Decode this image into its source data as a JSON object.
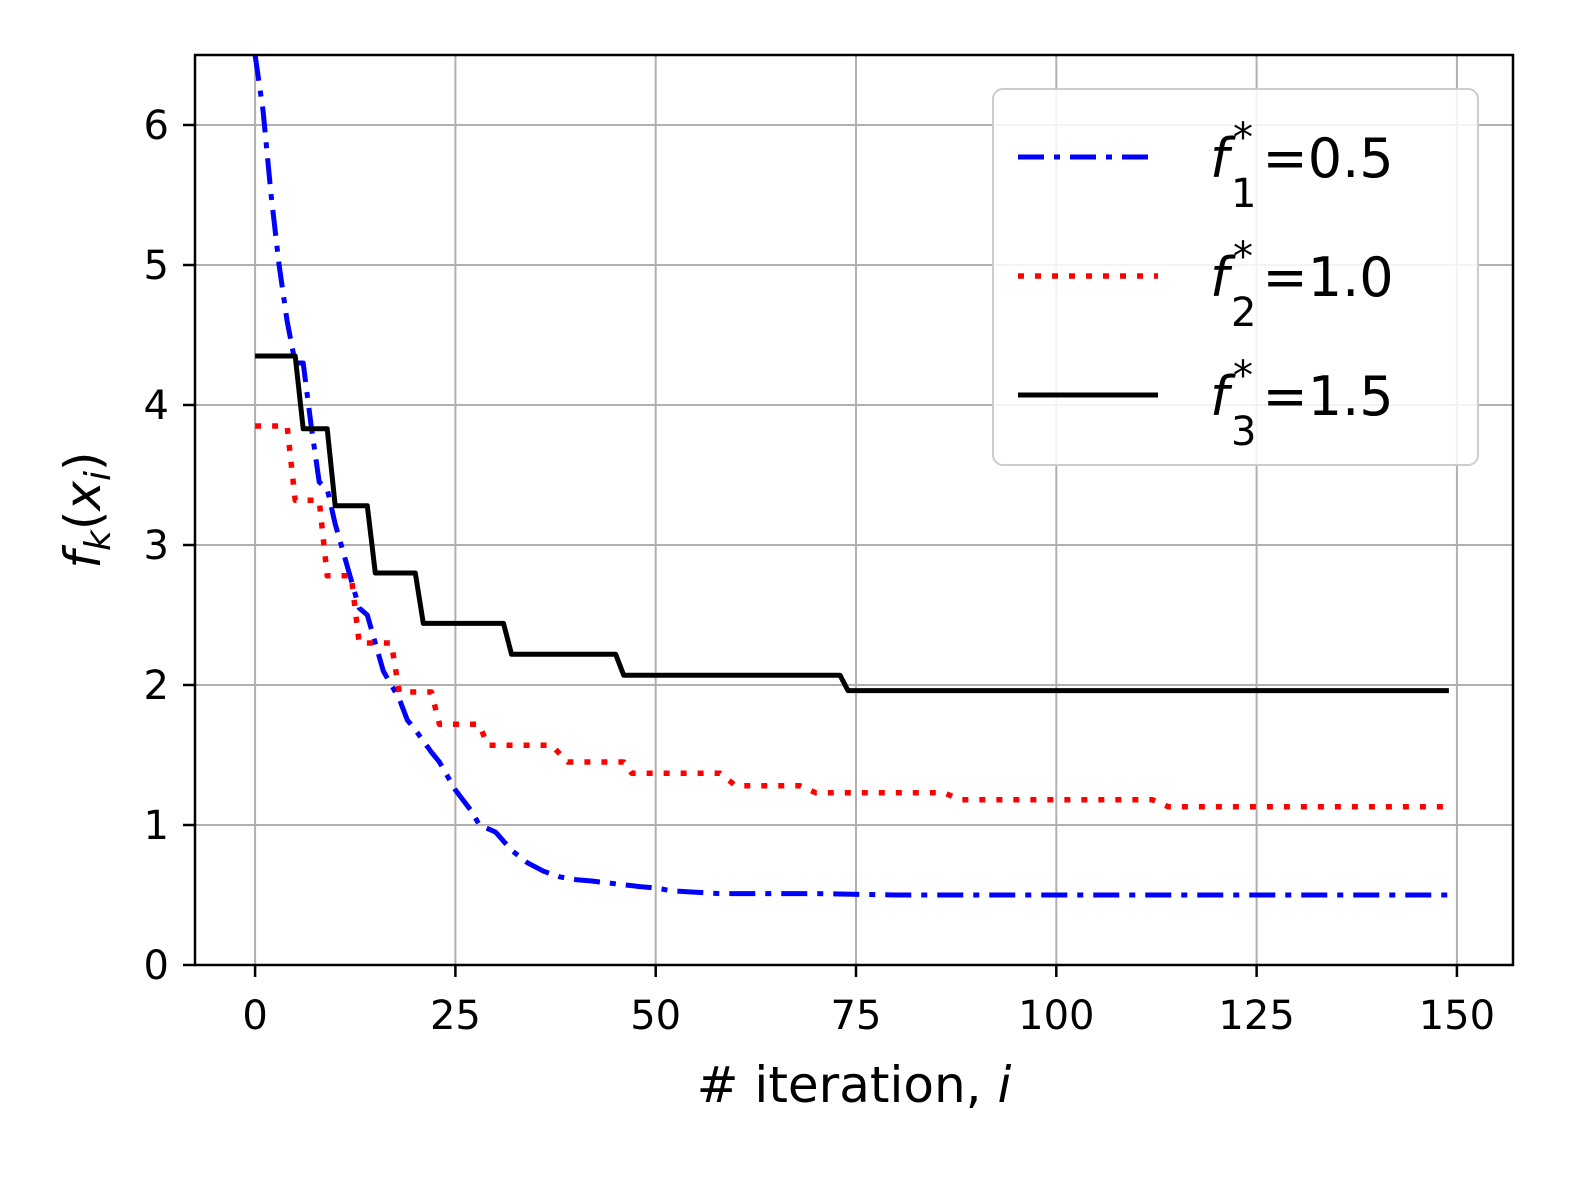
{
  "chart_data": {
    "type": "line",
    "xlabel": "# iteration, i",
    "ylabel": "f_k(x_i)",
    "xlim": [
      -7.5,
      157
    ],
    "ylim": [
      0,
      6.5
    ],
    "xticks": [
      0,
      25,
      50,
      75,
      100,
      125,
      150
    ],
    "yticks": [
      0,
      1,
      2,
      3,
      4,
      5,
      6
    ],
    "grid": true,
    "legend_position": "top-right",
    "series": [
      {
        "name": "f_1^*=0.5",
        "sub": "1",
        "value_text": "=0.5",
        "color": "#0000ff",
        "style": "dashdot",
        "step": false,
        "x": [
          0,
          1,
          2,
          3,
          4,
          5,
          6,
          7,
          8,
          9,
          10,
          11,
          12,
          13,
          14,
          15,
          16,
          17,
          18,
          19,
          20,
          21,
          22,
          23,
          24,
          25,
          27,
          28,
          30,
          32,
          34,
          36,
          38,
          40,
          42,
          45,
          48,
          50,
          52,
          55,
          58,
          60,
          70,
          80,
          90,
          100,
          110,
          120,
          130,
          140,
          149
        ],
        "y": [
          6.5,
          6.1,
          5.5,
          5.0,
          4.6,
          4.3,
          4.3,
          3.85,
          3.45,
          3.4,
          3.15,
          2.95,
          2.75,
          2.55,
          2.5,
          2.3,
          2.1,
          2.0,
          1.9,
          1.75,
          1.68,
          1.6,
          1.52,
          1.45,
          1.35,
          1.25,
          1.1,
          1.0,
          0.95,
          0.82,
          0.73,
          0.67,
          0.63,
          0.61,
          0.6,
          0.58,
          0.56,
          0.55,
          0.53,
          0.52,
          0.51,
          0.51,
          0.51,
          0.5,
          0.5,
          0.5,
          0.5,
          0.5,
          0.5,
          0.5,
          0.5
        ]
      },
      {
        "name": "f_2^*=1.0",
        "sub": "2",
        "value_text": "=1.0",
        "color": "#ff0000",
        "style": "dotted",
        "step": true,
        "x": [
          0,
          4,
          5,
          8,
          9,
          12,
          13,
          17,
          18,
          22,
          23,
          28,
          29,
          37,
          39,
          46,
          47,
          58,
          60,
          68,
          70,
          86,
          88,
          112,
          114,
          149
        ],
        "y": [
          3.85,
          3.85,
          3.32,
          3.32,
          2.78,
          2.78,
          2.3,
          2.3,
          1.95,
          1.95,
          1.72,
          1.72,
          1.57,
          1.57,
          1.45,
          1.45,
          1.37,
          1.37,
          1.28,
          1.28,
          1.23,
          1.23,
          1.18,
          1.18,
          1.13,
          1.13
        ]
      },
      {
        "name": "f_3^*=1.5",
        "sub": "3",
        "value_text": "=1.5",
        "color": "#000000",
        "style": "solid",
        "step": true,
        "x": [
          0,
          5,
          6,
          9,
          10,
          14,
          15,
          20,
          21,
          31,
          32,
          45,
          46,
          73,
          74,
          149
        ],
        "y": [
          4.35,
          4.35,
          3.83,
          3.83,
          3.28,
          3.28,
          2.8,
          2.8,
          2.44,
          2.44,
          2.22,
          2.22,
          2.07,
          2.07,
          1.96,
          1.96
        ]
      }
    ]
  }
}
